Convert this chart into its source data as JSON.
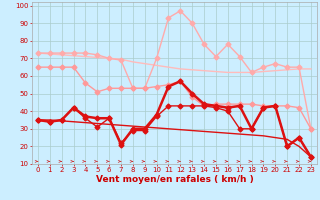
{
  "bg_color": "#cceeff",
  "grid_color": "#aacccc",
  "xlabel": "Vent moyen/en rafales ( km/h )",
  "xlim": [
    -0.5,
    23.5
  ],
  "ylim": [
    10,
    102
  ],
  "yticks": [
    10,
    20,
    30,
    40,
    50,
    60,
    70,
    80,
    90,
    100
  ],
  "xticks": [
    0,
    1,
    2,
    3,
    4,
    5,
    6,
    7,
    8,
    9,
    10,
    11,
    12,
    13,
    14,
    15,
    16,
    17,
    18,
    19,
    20,
    21,
    22,
    23
  ],
  "series": [
    {
      "label": "rafales_top",
      "color": "#ffaaaa",
      "linewidth": 1.0,
      "markersize": 2.5,
      "marker": "D",
      "y": [
        73,
        73,
        73,
        73,
        73,
        72,
        70,
        69,
        53,
        53,
        70,
        93,
        97,
        90,
        78,
        71,
        78,
        71,
        62,
        65,
        67,
        65,
        65,
        30
      ]
    },
    {
      "label": "rafales_trend",
      "color": "#ffbbbb",
      "linewidth": 1.0,
      "markersize": 0,
      "marker": null,
      "y": [
        73,
        72.5,
        72,
        71.5,
        71,
        70.5,
        70,
        69.5,
        68,
        67,
        66,
        65,
        64,
        63.5,
        63,
        62.5,
        62,
        62,
        62,
        62.5,
        63,
        63.5,
        64,
        64
      ]
    },
    {
      "label": "vent_max",
      "color": "#ff9999",
      "linewidth": 1.0,
      "markersize": 2.5,
      "marker": "D",
      "y": [
        65,
        65,
        65,
        65,
        56,
        51,
        53,
        53,
        53,
        53,
        54,
        55,
        57,
        48,
        43,
        44,
        44,
        44,
        44,
        43,
        43,
        43,
        42,
        30
      ]
    },
    {
      "label": "vent_moyen",
      "color": "#dd1111",
      "linewidth": 1.8,
      "markersize": 2.5,
      "marker": "D",
      "y": [
        35,
        34,
        35,
        42,
        37,
        36,
        36,
        21,
        30,
        30,
        38,
        54,
        57,
        50,
        44,
        43,
        42,
        43,
        30,
        42,
        43,
        20,
        25,
        14
      ]
    },
    {
      "label": "vent_trend",
      "color": "#dd1111",
      "linewidth": 1.0,
      "markersize": 0,
      "marker": null,
      "y": [
        35,
        35,
        34.5,
        34,
        33.5,
        33,
        32.5,
        32,
        31.5,
        31,
        30.5,
        30,
        29.5,
        29,
        28.5,
        28,
        27.5,
        27,
        26.5,
        26,
        25,
        24,
        20,
        14
      ]
    },
    {
      "label": "vent_min",
      "color": "#dd1111",
      "linewidth": 1.0,
      "markersize": 2.5,
      "marker": "D",
      "y": [
        35,
        34,
        35,
        42,
        36,
        31,
        36,
        22,
        29,
        29,
        37,
        43,
        43,
        43,
        43,
        42,
        40,
        30,
        30,
        42,
        43,
        20,
        25,
        14
      ]
    }
  ],
  "tick_fontsize": 5,
  "xlabel_fontsize": 6.5
}
